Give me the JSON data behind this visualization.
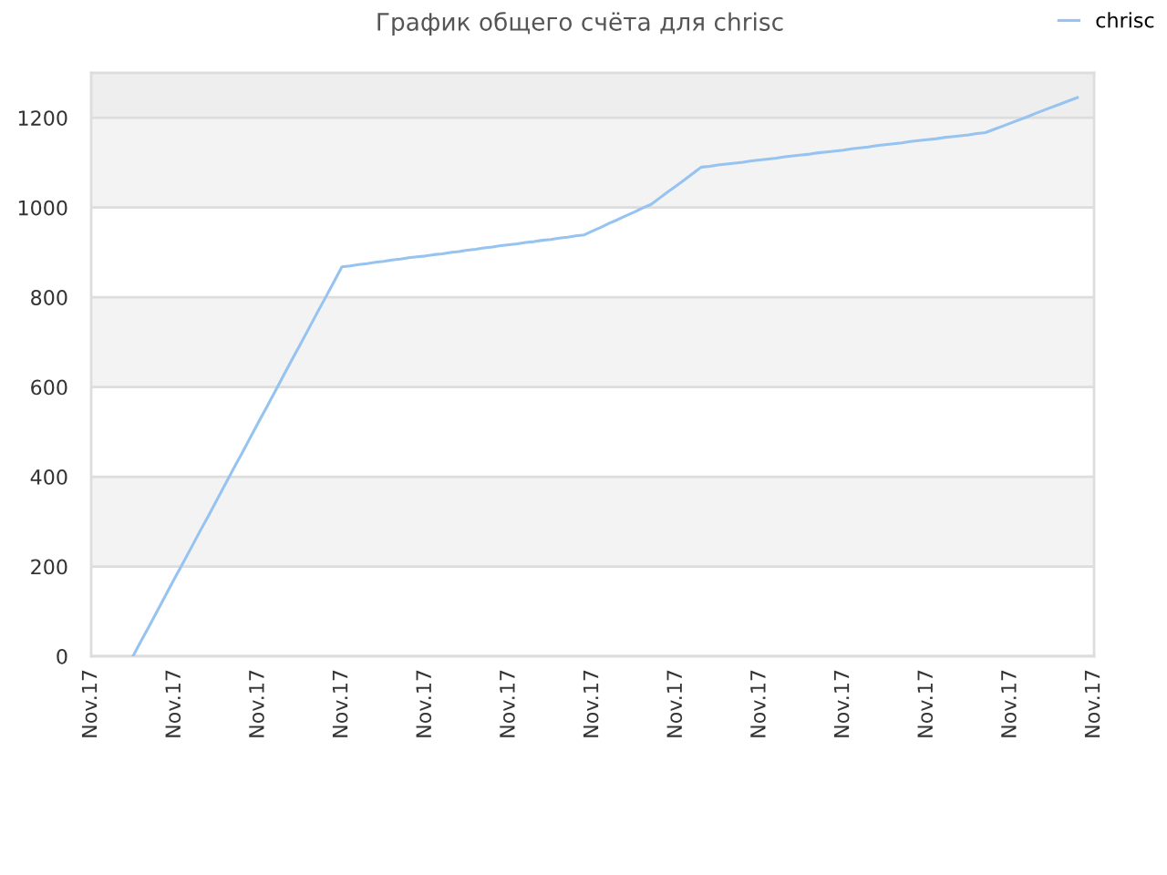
{
  "chart_data": {
    "type": "line",
    "title": "График общего счёта для chrisc",
    "categories": [
      "Nov.17",
      null,
      null,
      null,
      null,
      null,
      null,
      null,
      null,
      null,
      "Nov.17",
      null,
      null,
      null,
      null,
      null,
      null,
      null,
      null,
      null,
      "Nov.17",
      null,
      null,
      null,
      null,
      null,
      null,
      null,
      null,
      null,
      "Nov.17",
      null,
      null,
      null,
      null,
      null,
      null,
      null,
      null,
      null,
      "Nov.17",
      null,
      null,
      null,
      null,
      null,
      null,
      null,
      null,
      null,
      "Nov.17",
      null,
      null,
      null,
      null,
      null,
      null,
      null,
      null,
      null,
      "Nov.17",
      null,
      null,
      null,
      null,
      null,
      null,
      null,
      null,
      null,
      "Nov.17",
      null,
      null,
      null,
      null,
      null,
      null,
      null,
      null,
      null,
      "Nov.17",
      null,
      null,
      null,
      null,
      null,
      null,
      null,
      null,
      null,
      "Nov.17",
      null,
      null,
      null,
      null,
      null,
      null,
      null,
      null,
      null,
      "Nov.17",
      null,
      null,
      null,
      null,
      null,
      null,
      null,
      null,
      null,
      "Nov.17",
      null,
      null,
      null,
      null,
      null,
      null,
      null,
      null,
      null,
      "Nov.17"
    ],
    "series": [
      {
        "name": "chrisc",
        "color": "#96c3f0",
        "values": [
          null,
          null,
          null,
          null,
          null,
          0,
          35,
          69,
          104,
          139,
          174,
          208,
          243,
          278,
          312,
          347,
          382,
          417,
          451,
          486,
          521,
          555,
          590,
          625,
          660,
          694,
          729,
          764,
          798,
          833,
          868,
          870,
          873,
          875,
          878,
          880,
          883,
          885,
          888,
          890,
          892,
          895,
          897,
          900,
          902,
          905,
          907,
          910,
          912,
          915,
          917,
          919,
          922,
          924,
          927,
          929,
          932,
          934,
          937,
          939,
          948,
          956,
          965,
          973,
          982,
          990,
          999,
          1007,
          1021,
          1035,
          1048,
          1062,
          1076,
          1090,
          1092,
          1095,
          1097,
          1099,
          1101,
          1104,
          1106,
          1108,
          1110,
          1113,
          1115,
          1117,
          1119,
          1122,
          1124,
          1126,
          1128,
          1131,
          1133,
          1135,
          1138,
          1140,
          1142,
          1144,
          1147,
          1149,
          1151,
          1153,
          1156,
          1158,
          1160,
          1162,
          1165,
          1167,
          1174,
          1181,
          1188,
          1195,
          1202,
          1210,
          1217,
          1224,
          1231,
          1238,
          1245,
          null,
          null
        ]
      }
    ],
    "ylim": [
      0,
      1300
    ],
    "yticks": [
      0,
      200,
      400,
      600,
      800,
      1000,
      1200
    ],
    "bands": [
      {
        "axis": "y",
        "from": 200,
        "to": 400,
        "color": "#f3f3f3"
      },
      {
        "axis": "y",
        "from": 600,
        "to": 800,
        "color": "#f3f3f3"
      },
      {
        "axis": "y",
        "from": 1000,
        "to": 1200,
        "color": "#f3f3f3"
      },
      {
        "axis": "y",
        "from": 1200,
        "to": 1300,
        "color": "#eeeeee"
      }
    ],
    "grid": "y",
    "legend": "top right",
    "marker": "none",
    "line_style": "solid"
  }
}
